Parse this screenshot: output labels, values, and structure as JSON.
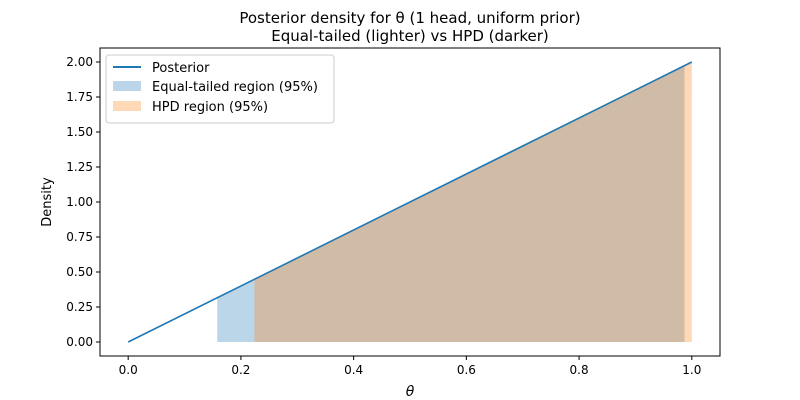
{
  "chart_data": {
    "type": "area",
    "title": "Posterior density for θ (1 head, uniform prior)",
    "subtitle": "Equal-tailed (lighter) vs HPD (darker)",
    "xlabel": "θ",
    "ylabel": "Density",
    "xlim": [
      -0.05,
      1.05
    ],
    "ylim": [
      -0.1,
      2.1
    ],
    "xticks": [
      0.0,
      0.2,
      0.4,
      0.6,
      0.8,
      1.0
    ],
    "xtick_labels": [
      "0.0",
      "0.2",
      "0.4",
      "0.6",
      "0.8",
      "1.0"
    ],
    "yticks": [
      0.0,
      0.25,
      0.5,
      0.75,
      1.0,
      1.25,
      1.5,
      1.75,
      2.0
    ],
    "ytick_labels": [
      "0.00",
      "0.25",
      "0.50",
      "0.75",
      "1.00",
      "1.25",
      "1.50",
      "1.75",
      "2.00"
    ],
    "grid": false,
    "legend_position": "top-left",
    "series": [
      {
        "name": "Posterior",
        "kind": "line",
        "color": "#1f77b4",
        "x": [
          0.0,
          1.0
        ],
        "y": [
          0.0,
          2.0
        ]
      },
      {
        "name": "Equal-tailed region (95%)",
        "kind": "shaded",
        "color": "#1f77b4",
        "opacity": 0.3,
        "range": [
          0.158,
          0.987
        ]
      },
      {
        "name": "HPD region (95%)",
        "kind": "shaded",
        "color": "#ff7f0e",
        "opacity": 0.3,
        "range": [
          0.224,
          1.0
        ]
      }
    ]
  }
}
